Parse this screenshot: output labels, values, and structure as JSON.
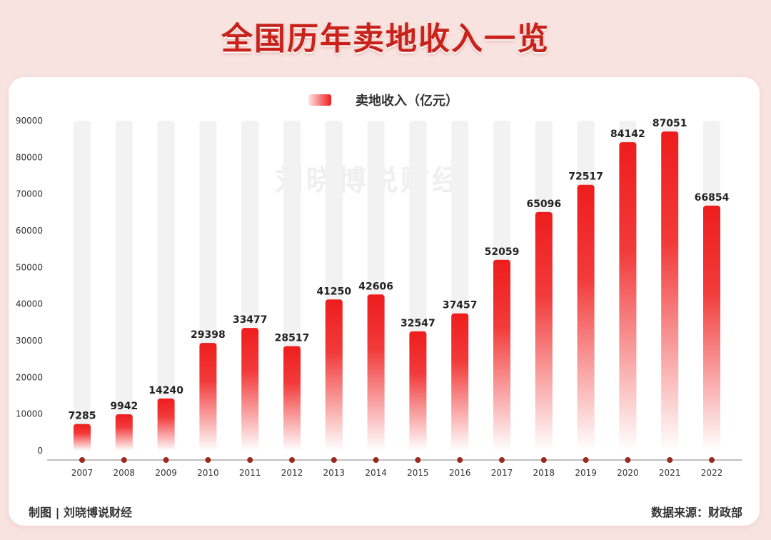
{
  "title": "全国历年卖地收入一览",
  "watermark": "刘晓博说财经",
  "footer": {
    "credit": "制图 | 刘晓博说财经",
    "source": "数据来源：财政部"
  },
  "colors": {
    "title": "#c8221a",
    "bar_top": "#ee1d1d",
    "bar_bottom": "#ffffff",
    "track": "#f2f2f2",
    "marker": "#9b2b1c"
  },
  "chart_data": {
    "type": "bar",
    "categories": [
      "2007",
      "2008",
      "2009",
      "2010",
      "2011",
      "2012",
      "2013",
      "2014",
      "2015",
      "2016",
      "2017",
      "2018",
      "2019",
      "2020",
      "2021",
      "2022"
    ],
    "series": [
      {
        "name": "卖地收入（亿元）",
        "values": [
          7285,
          9942,
          14240,
          29398,
          33477,
          28517,
          41250,
          42606,
          32547,
          37457,
          52059,
          65096,
          72517,
          84142,
          87051,
          66854
        ]
      }
    ],
    "y_ticks": [
      0,
      10000,
      20000,
      30000,
      40000,
      50000,
      60000,
      70000,
      80000,
      90000
    ],
    "ylim": [
      0,
      90000
    ],
    "grid": false,
    "legend_position": "top-center",
    "data_labels": true
  }
}
